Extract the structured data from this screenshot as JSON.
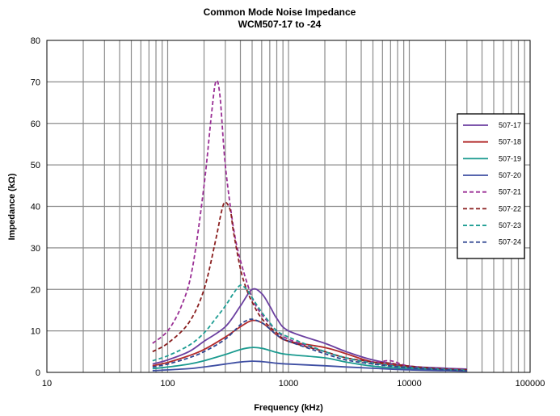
{
  "chart_data": {
    "type": "line",
    "title": "Common Mode Noise Impedance",
    "subtitle": "WCM507-17 to -24",
    "xlabel": "Frequency (kHz)",
    "ylabel": "Impedance (kΩ)",
    "xscale": "log",
    "xlim": [
      10,
      100000
    ],
    "ylim": [
      0,
      80
    ],
    "x_ticks": [
      10,
      100,
      1000,
      10000,
      100000
    ],
    "x_tick_labels": [
      "10",
      "100",
      "1000",
      "10000",
      "100000"
    ],
    "y_ticks": [
      0,
      10,
      20,
      30,
      40,
      50,
      60,
      70,
      80
    ],
    "y_tick_labels": [
      "0",
      "10",
      "20",
      "30",
      "40",
      "50",
      "60",
      "70",
      "80"
    ],
    "grid": true,
    "legend_position": "right",
    "series": [
      {
        "name": "507-17",
        "color": "#6b3fa0",
        "dash": "solid",
        "x": [
          75,
          100,
          150,
          200,
          300,
          400,
          500,
          600,
          700,
          800,
          1000,
          2000,
          3000,
          5000,
          10000,
          20000,
          30000
        ],
        "y": [
          2,
          3,
          5,
          7.5,
          11,
          16,
          20,
          19,
          16,
          13,
          10,
          7,
          5,
          3,
          1.5,
          1,
          0.8
        ]
      },
      {
        "name": "507-18",
        "color": "#b22a2a",
        "dash": "solid",
        "x": [
          75,
          100,
          150,
          200,
          300,
          400,
          500,
          600,
          700,
          800,
          1000,
          2000,
          3000,
          5000,
          10000,
          20000,
          30000
        ],
        "y": [
          1.6,
          2.4,
          4,
          5.5,
          8.5,
          11,
          12.5,
          12,
          10.5,
          9,
          7.5,
          6,
          4.5,
          2.5,
          1.3,
          0.8,
          0.6
        ]
      },
      {
        "name": "507-19",
        "color": "#1a9a8f",
        "dash": "solid",
        "x": [
          75,
          100,
          150,
          200,
          300,
          400,
          500,
          600,
          700,
          800,
          1000,
          2000,
          3000,
          5000,
          10000,
          20000,
          30000
        ],
        "y": [
          0.9,
          1.3,
          2,
          2.8,
          4.3,
          5.5,
          6,
          5.8,
          5.3,
          4.8,
          4.3,
          3.5,
          2.5,
          1.5,
          0.9,
          0.6,
          0.5
        ]
      },
      {
        "name": "507-20",
        "color": "#3f4fa3",
        "dash": "solid",
        "x": [
          75,
          100,
          150,
          200,
          300,
          400,
          500,
          600,
          700,
          800,
          1000,
          2000,
          3000,
          5000,
          10000,
          20000,
          30000
        ],
        "y": [
          0.4,
          0.6,
          0.9,
          1.3,
          2,
          2.5,
          2.7,
          2.6,
          2.4,
          2.2,
          2,
          1.6,
          1.3,
          1,
          0.6,
          0.4,
          0.3
        ]
      },
      {
        "name": "507-21",
        "color": "#9a2f95",
        "dash": "dashed",
        "x": [
          75,
          100,
          130,
          160,
          200,
          230,
          250,
          270,
          300,
          350,
          400,
          500,
          600,
          800,
          1000,
          2000,
          3000,
          5000,
          7000,
          10000,
          20000,
          30000
        ],
        "y": [
          7,
          10,
          16,
          25,
          45,
          62,
          70,
          67,
          50,
          35,
          27,
          18,
          14,
          10,
          8,
          5,
          3.5,
          2.5,
          2.8,
          1.5,
          0.8,
          0.6
        ]
      },
      {
        "name": "507-22",
        "color": "#8a1f1f",
        "dash": "dashed",
        "x": [
          75,
          100,
          150,
          200,
          250,
          280,
          300,
          330,
          350,
          400,
          450,
          500,
          600,
          800,
          1000,
          2000,
          3000,
          5000,
          7000,
          10000,
          20000,
          30000
        ],
        "y": [
          5,
          7,
          12,
          20,
          32,
          39,
          41,
          39,
          34,
          25,
          20,
          17,
          13,
          9.5,
          7.5,
          5,
          3.5,
          2.5,
          2.2,
          1.5,
          0.8,
          0.6
        ]
      },
      {
        "name": "507-23",
        "color": "#1f9e94",
        "dash": "dashed",
        "x": [
          75,
          100,
          150,
          200,
          250,
          300,
          350,
          400,
          450,
          500,
          600,
          700,
          800,
          1000,
          2000,
          3000,
          5000,
          10000,
          20000,
          30000
        ],
        "y": [
          2.8,
          4,
          6.5,
          9.5,
          13,
          16,
          19,
          21,
          20,
          18,
          14.5,
          12,
          10,
          8.5,
          5,
          3.5,
          2.2,
          1.2,
          0.7,
          0.5
        ]
      },
      {
        "name": "507-24",
        "color": "#2f4590",
        "dash": "dashed",
        "x": [
          75,
          100,
          150,
          200,
          300,
          400,
          450,
          500,
          600,
          700,
          800,
          1000,
          2000,
          3000,
          5000,
          10000,
          20000,
          30000
        ],
        "y": [
          1.3,
          2,
          3.5,
          5,
          8,
          11.5,
          12.5,
          12.8,
          12,
          10.5,
          9,
          7.5,
          4.5,
          3,
          2,
          1.1,
          0.6,
          0.4
        ]
      }
    ]
  }
}
